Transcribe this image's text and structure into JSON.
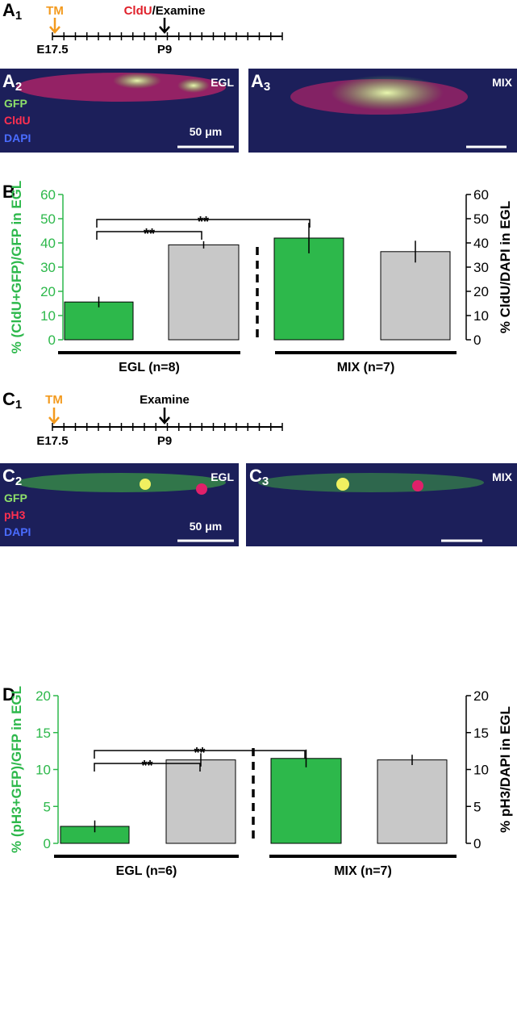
{
  "figure": {
    "timeline_a": {
      "label": {
        "letter": "A",
        "sub": "1"
      },
      "start_marker": "TM",
      "end_marker_parts": [
        "CldU",
        "/Examine"
      ],
      "start": "E17.5",
      "end": "P9"
    },
    "image_a2": {
      "label": {
        "letter": "A",
        "sub": "2"
      },
      "stains": [
        "GFP",
        "CldU",
        "DAPI"
      ],
      "region": "EGL",
      "scale": "50 μm"
    },
    "image_a3": {
      "label": {
        "letter": "A",
        "sub": "3"
      },
      "region": "MIX"
    },
    "timeline_c": {
      "label": {
        "letter": "C",
        "sub": "1"
      },
      "start_marker": "TM",
      "end_marker_parts": [
        "Examine"
      ],
      "start": "E17.5",
      "end": "P9"
    },
    "image_c2": {
      "label": {
        "letter": "C",
        "sub": "2"
      },
      "stains": [
        "GFP",
        "pH3",
        "DAPI"
      ],
      "region": "EGL",
      "scale": "50 μm"
    },
    "image_c3": {
      "label": {
        "letter": "C",
        "sub": "3"
      },
      "region": "MIX"
    }
  },
  "chart_data": [
    {
      "type": "bar",
      "panel_label": "B",
      "groups": [
        "EGL (n=8)",
        "MIX (n=7)"
      ],
      "ylabel": "% (CldU+GFP)/GFP in EGL",
      "y2label": "% CldU/DAPI in EGL",
      "ylim": [
        0,
        60
      ],
      "yticks": [
        0,
        10,
        20,
        30,
        40,
        50,
        60
      ],
      "y2lim": [
        0,
        60
      ],
      "y2ticks": [
        0,
        10,
        20,
        30,
        40,
        50,
        60
      ],
      "series": [
        {
          "color": "#2db84b",
          "values": [
            15.6,
            42
          ],
          "errors": [
            2.2,
            6.3
          ]
        },
        {
          "color": "#c8c8c8",
          "axis": "y2",
          "values": [
            39.2,
            36.4
          ],
          "errors": [
            1.5,
            4.5
          ]
        }
      ],
      "annotations": [
        "**",
        "**"
      ]
    },
    {
      "type": "bar",
      "panel_label": "D",
      "groups": [
        "EGL (n=6)",
        "MIX (n=7)"
      ],
      "ylabel": "% (pH3+GFP)/GFP in EGL",
      "y2label": "% pH3/DAPI in EGL",
      "ylim": [
        0,
        20
      ],
      "yticks": [
        0,
        5,
        10,
        15,
        20
      ],
      "y2lim": [
        0,
        20
      ],
      "y2ticks": [
        0,
        5,
        10,
        15,
        20
      ],
      "series": [
        {
          "color": "#2db84b",
          "values": [
            2.3,
            11.5
          ],
          "errors": [
            0.8,
            1.2
          ]
        },
        {
          "color": "#c8c8c8",
          "axis": "y2",
          "values": [
            11.3,
            11.3
          ],
          "errors": [
            0.9,
            0.7
          ]
        }
      ],
      "annotations": [
        "**",
        "**"
      ]
    }
  ]
}
